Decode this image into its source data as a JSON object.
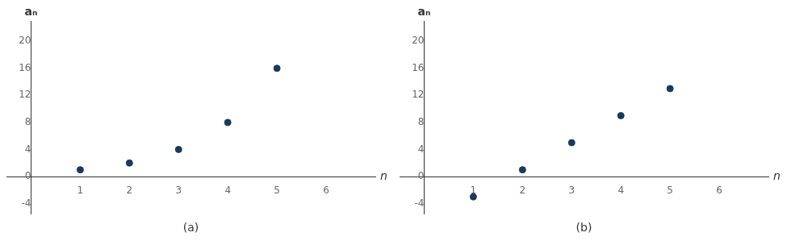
{
  "chart_data": [
    {
      "type": "scatter",
      "title": "(a)",
      "xlabel": "n",
      "ylabel": "aₙ",
      "x": [
        1,
        2,
        3,
        4,
        5
      ],
      "values": [
        1,
        2,
        4,
        8,
        16
      ],
      "color": "#1a3a5c",
      "xlim": [
        -0.5,
        7.0
      ],
      "ylim": [
        -5.5,
        23
      ],
      "xticks": [
        1,
        2,
        3,
        4,
        5,
        6
      ],
      "yticks": [
        -4,
        0,
        4,
        8,
        12,
        16,
        20
      ],
      "grid": false
    },
    {
      "type": "scatter",
      "title": "(b)",
      "xlabel": "n",
      "ylabel": "aₙ",
      "x": [
        1,
        2,
        3,
        4,
        5
      ],
      "values": [
        -3,
        1,
        5,
        9,
        13
      ],
      "color": "#1a3a5c",
      "xlim": [
        -0.5,
        7.0
      ],
      "ylim": [
        -5.5,
        23
      ],
      "xticks": [
        1,
        2,
        3,
        4,
        5,
        6
      ],
      "yticks": [
        -4,
        0,
        4,
        8,
        12,
        16,
        20
      ],
      "grid": false
    }
  ]
}
